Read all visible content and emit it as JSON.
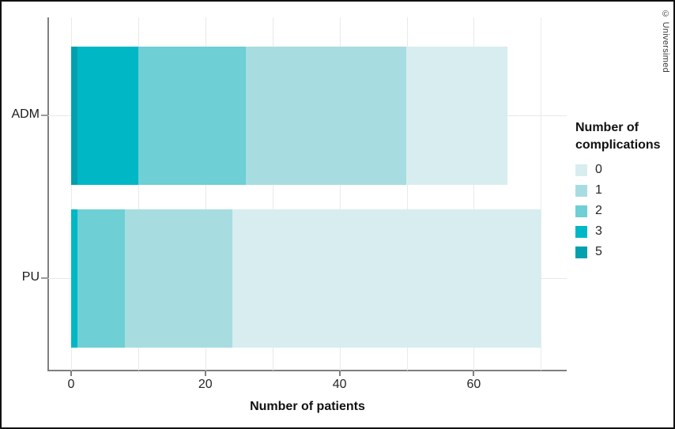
{
  "copyright": "© Universimed",
  "chart_data": {
    "type": "bar",
    "orientation": "horizontal",
    "stacked": true,
    "title": "",
    "xlabel": "Number of patients",
    "ylabel": "",
    "categories": [
      "ADM",
      "PU"
    ],
    "series": [
      {
        "name": "5",
        "color": "#00a0ae",
        "values": [
          1,
          0
        ]
      },
      {
        "name": "3",
        "color": "#00b7c6",
        "values": [
          9,
          1
        ]
      },
      {
        "name": "2",
        "color": "#6ecfd4",
        "values": [
          16,
          7
        ]
      },
      {
        "name": "1",
        "color": "#a7dde1",
        "values": [
          24,
          16
        ]
      },
      {
        "name": "0",
        "color": "#d8edef",
        "values": [
          15,
          46
        ]
      }
    ],
    "category_totals": [
      65,
      70
    ],
    "x_ticks": [
      0,
      20,
      40,
      60
    ],
    "x_minor_gridlines": [
      10,
      30,
      50,
      70
    ],
    "xlim": [
      0,
      73
    ],
    "grid": true,
    "legend": {
      "title": "Number of complications",
      "entries": [
        "0",
        "1",
        "2",
        "3",
        "5"
      ],
      "position": "right"
    },
    "colors": {
      "axis": "#7f7f7f",
      "gridline": "#e9e9e9",
      "text": "#1a1a1a"
    }
  }
}
